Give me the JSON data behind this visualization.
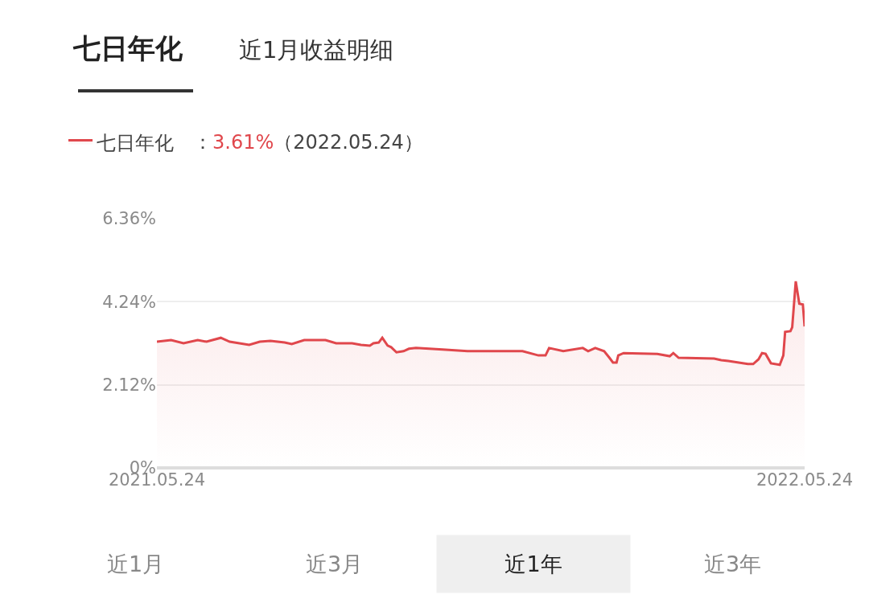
{
  "chart_data": {
    "type": "area",
    "title": "七日年化",
    "subtitle": "近1月收益明细",
    "annotations": [
      "：",
      "3.61%",
      "（2022.05.24）",
      "近1月",
      "近3月",
      "近1年",
      "近3年"
    ],
    "x": [
      "2021-05-24",
      "2021-06-01",
      "2021-06-08",
      "2021-06-16",
      "2021-06-21",
      "2021-06-29",
      "2021-07-04",
      "2021-07-15",
      "2021-07-21",
      "2021-07-27",
      "2021-08-04",
      "2021-08-08",
      "2021-08-15",
      "2021-08-27",
      "2021-09-02",
      "2021-09-11",
      "2021-09-16",
      "2021-09-21",
      "2021-09-23",
      "2021-09-26",
      "2021-09-28",
      "2021-10-01",
      "2021-10-03",
      "2021-10-06",
      "2021-10-10",
      "2021-10-13",
      "2021-10-17",
      "2021-11-01",
      "2021-11-15",
      "2021-11-29",
      "2021-12-16",
      "2021-12-25",
      "2021-12-29",
      "2021-12-31",
      "2022-01-08",
      "2022-01-19",
      "2022-01-22",
      "2022-01-26",
      "2022-01-31",
      "2022-02-03",
      "2022-02-05",
      "2022-02-07",
      "2022-02-08",
      "2022-02-11",
      "2022-03-02",
      "2022-03-09",
      "2022-03-11",
      "2022-03-14",
      "2022-04-03",
      "2022-04-07",
      "2022-04-11",
      "2022-04-22",
      "2022-04-25",
      "2022-04-28",
      "2022-04-30",
      "2022-05-02",
      "2022-05-05",
      "2022-05-10",
      "2022-05-12",
      "2022-05-13",
      "2022-05-16",
      "2022-05-17",
      "2022-05-19",
      "2022-05-21",
      "2022-05-23",
      "2022-05-24"
    ],
    "series": [
      {
        "name": "七日年化",
        "color": "#e0474c",
        "values": [
          3.22,
          3.26,
          3.18,
          3.26,
          3.22,
          3.32,
          3.22,
          3.14,
          3.22,
          3.24,
          3.2,
          3.16,
          3.26,
          3.26,
          3.18,
          3.18,
          3.14,
          3.12,
          3.18,
          3.2,
          3.32,
          3.12,
          3.08,
          2.95,
          2.98,
          3.04,
          3.06,
          3.02,
          2.98,
          2.98,
          2.98,
          2.87,
          2.87,
          3.06,
          2.98,
          3.06,
          2.98,
          3.06,
          2.98,
          2.81,
          2.69,
          2.69,
          2.87,
          2.93,
          2.91,
          2.85,
          2.93,
          2.81,
          2.79,
          2.75,
          2.73,
          2.65,
          2.65,
          2.77,
          2.93,
          2.91,
          2.67,
          2.63,
          2.87,
          3.47,
          3.49,
          3.59,
          4.76,
          4.19,
          4.17,
          3.61
        ]
      }
    ],
    "xlim": [
      "2021-05-24",
      "2022-05-24"
    ],
    "xticks": [
      {
        "value": "2021-05-24",
        "label": "2021.05.24"
      },
      {
        "value": "2022-05-24",
        "label": "2022.05.24"
      }
    ],
    "ylim": [
      0,
      6.36
    ],
    "yticks": [
      {
        "value": 0,
        "label": "0%"
      },
      {
        "value": 2.12,
        "label": "2.12%"
      },
      {
        "value": 4.24,
        "label": "4.24%"
      },
      {
        "value": 6.36,
        "label": "6.36%"
      }
    ],
    "grid": "y",
    "legend": "top left",
    "marker": "none",
    "line_style": "solid"
  }
}
